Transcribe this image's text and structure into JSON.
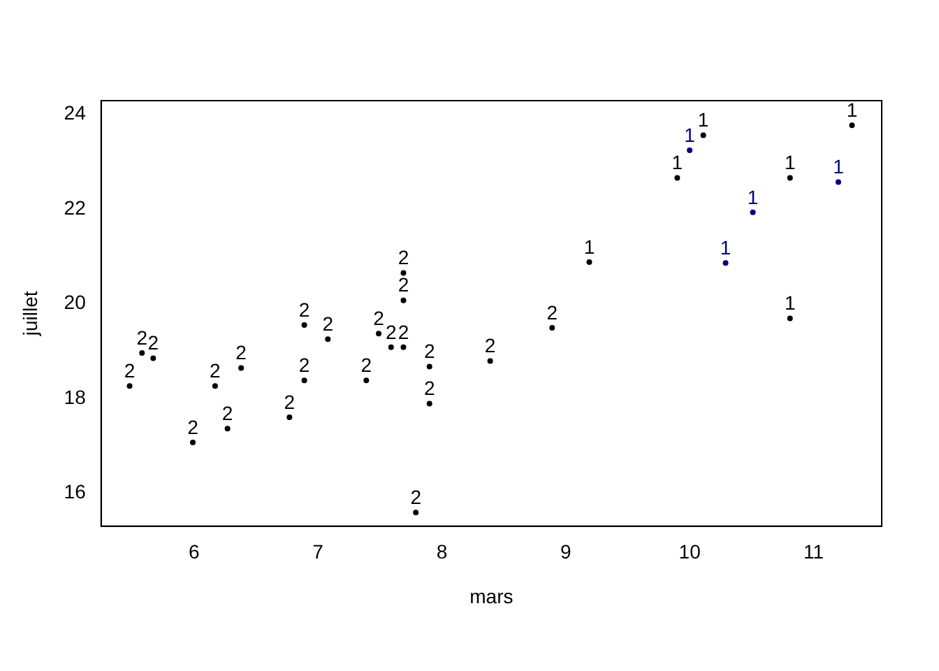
{
  "chart_data": {
    "type": "scatter",
    "xlabel": "mars",
    "ylabel": "juillet",
    "xlim": [
      5.25,
      11.55
    ],
    "xticks": [
      6,
      7,
      8,
      9,
      10,
      11
    ],
    "ylim": [
      15.3,
      24.29
    ],
    "yticks": [
      16,
      18,
      20,
      22,
      24
    ],
    "grid": false,
    "legend": false,
    "series": [
      {
        "name": "2",
        "color": "#000000",
        "x": [
          5.48,
          5.58,
          5.67,
          5.99,
          6.17,
          6.27,
          6.38,
          6.77,
          6.89,
          6.89,
          7.08,
          7.39,
          7.49,
          7.59,
          7.69,
          7.69,
          7.69,
          7.9,
          7.9,
          7.79,
          8.39,
          8.89
        ],
        "values": [
          18.26,
          18.96,
          18.85,
          17.07,
          18.26,
          17.36,
          18.64,
          17.6,
          19.55,
          18.38,
          19.25,
          18.38,
          19.37,
          19.08,
          19.08,
          20.65,
          20.07,
          18.67,
          17.89,
          15.59,
          18.79,
          19.49
        ]
      },
      {
        "name": "1",
        "color": "#000000",
        "x": [
          9.9,
          10.11,
          9.19,
          10.81,
          10.81,
          11.31
        ],
        "values": [
          22.66,
          23.56,
          20.88,
          22.66,
          19.69,
          23.77
        ]
      },
      {
        "name": "1",
        "color": "#000080",
        "x": [
          10.0,
          10.51,
          10.29,
          11.2
        ],
        "values": [
          23.24,
          21.93,
          20.86,
          22.57
        ]
      }
    ]
  }
}
